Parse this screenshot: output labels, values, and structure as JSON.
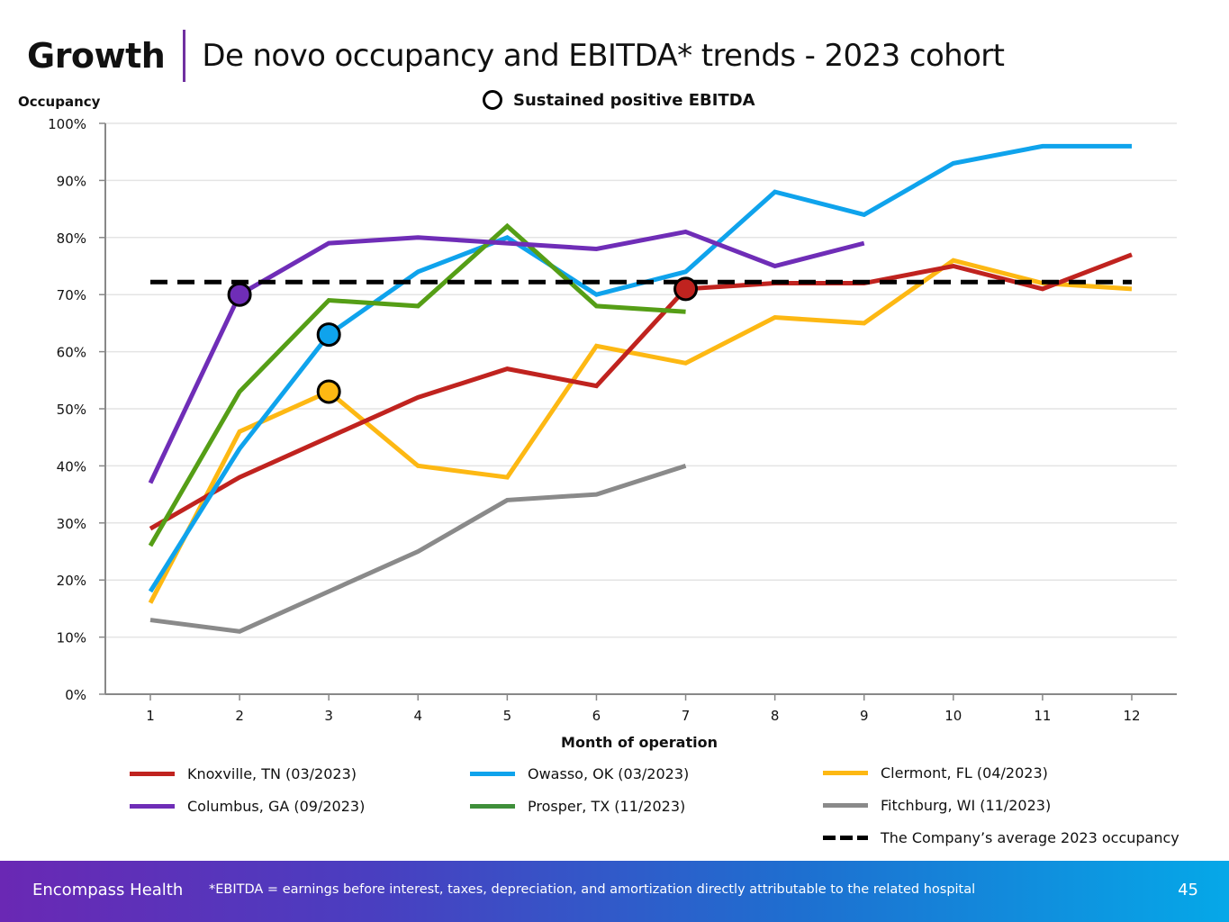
{
  "header": {
    "section": "Growth",
    "title": "De novo occupancy and EBITDA* trends - 2023 cohort"
  },
  "marker_legend": {
    "label": "Sustained positive EBITDA",
    "icon": "hollow-circle-icon"
  },
  "chart_data": {
    "type": "line",
    "title": "De novo occupancy and EBITDA* trends - 2023 cohort",
    "xlabel": "Month of operation",
    "ylabel": "Occupancy",
    "x": [
      1,
      2,
      3,
      4,
      5,
      6,
      7,
      8,
      9,
      10,
      11,
      12
    ],
    "x_tick_labels": [
      "1",
      "2",
      "3",
      "4",
      "5",
      "6",
      "7",
      "8",
      "9",
      "10",
      "11",
      "12"
    ],
    "ylim": [
      0,
      100
    ],
    "y_ticks": [
      0,
      10,
      20,
      30,
      40,
      50,
      60,
      70,
      80,
      90,
      100
    ],
    "y_tick_labels": [
      "0%",
      "10%",
      "20%",
      "30%",
      "40%",
      "50%",
      "60%",
      "70%",
      "80%",
      "90%",
      "100%"
    ],
    "grid": true,
    "legend_position": "bottom",
    "series": [
      {
        "name": "Knoxville, TN (03/2023)",
        "color": "#c0231f",
        "values": [
          29,
          38,
          45,
          52,
          57,
          54,
          71,
          72,
          72,
          75,
          71,
          77
        ],
        "ebitda_marker_month": 7
      },
      {
        "name": "Owasso, OK (03/2023)",
        "color": "#0fa3ec",
        "values": [
          18,
          43,
          63,
          74,
          80,
          70,
          74,
          88,
          84,
          93,
          96,
          96
        ],
        "ebitda_marker_month": 3
      },
      {
        "name": "Clermont, FL (04/2023)",
        "color": "#fdb813",
        "values": [
          16,
          46,
          53,
          40,
          38,
          61,
          58,
          66,
          65,
          76,
          72,
          71
        ],
        "ebitda_marker_month": 3
      },
      {
        "name": "Columbus, GA (09/2023)",
        "color": "#6f2db7",
        "values": [
          37,
          70,
          79,
          80,
          79,
          78,
          81,
          75,
          79
        ],
        "ebitda_marker_month": 2
      },
      {
        "name": "Prosper, TX (11/2023)",
        "color": "#559e16",
        "legend_color": "#3f8f3a",
        "values": [
          26,
          53,
          69,
          68,
          82,
          68,
          67
        ],
        "ebitda_marker_month": null
      },
      {
        "name": "Fitchburg, WI (11/2023)",
        "color": "#8a8a8a",
        "values": [
          13,
          11,
          18,
          25,
          34,
          35,
          40
        ],
        "ebitda_marker_month": null
      }
    ],
    "reference_line": {
      "name": "The Company’s average 2023 occupancy",
      "value": 72.2,
      "x_range": [
        1,
        12
      ],
      "style": "dashed",
      "color": "#000000"
    }
  },
  "legend": {
    "items": [
      {
        "label": "Knoxville, TN (03/2023)",
        "color": "#c0231f",
        "style": "solid"
      },
      {
        "label": "Owasso, OK (03/2023)",
        "color": "#0fa3ec",
        "style": "solid"
      },
      {
        "label": "Clermont, FL (04/2023)",
        "color": "#fdb813",
        "style": "solid"
      },
      {
        "label": "Columbus, GA (09/2023)",
        "color": "#6f2db7",
        "style": "solid"
      },
      {
        "label": "Prosper, TX (11/2023)",
        "color": "#3f8f3a",
        "style": "solid"
      },
      {
        "label": "Fitchburg, WI (11/2023)",
        "color": "#8a8a8a",
        "style": "solid"
      },
      {
        "label": "The Company’s average 2023 occupancy",
        "color": "#000000",
        "style": "dashed"
      }
    ]
  },
  "footer": {
    "brand": "Encompass Health",
    "note": "*EBITDA = earnings before interest, taxes, depreciation, and amortization directly attributable to the related hospital",
    "page_number": "45"
  }
}
